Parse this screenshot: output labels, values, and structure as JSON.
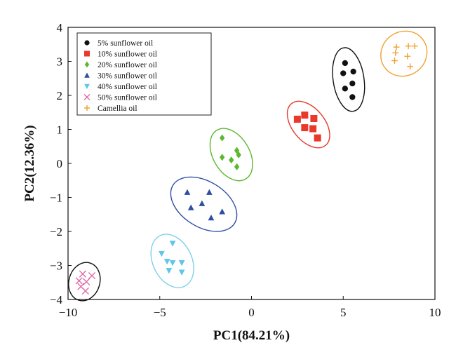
{
  "chart_data": {
    "type": "scatter",
    "title": "",
    "xlabel": "PC1(84.21%)",
    "ylabel": "PC2(12.36%)",
    "xlim": [
      -10,
      10
    ],
    "ylim": [
      -4,
      4
    ],
    "xticks": [
      "−10",
      "−5",
      "0",
      "5",
      "10"
    ],
    "yticks": [
      "4",
      "3",
      "2",
      "1",
      "0",
      "−1",
      "−2",
      "−3",
      "−4"
    ],
    "grid": false,
    "legend_position": "top-left",
    "series": [
      {
        "name": "5% sunflower oil",
        "marker": "circle",
        "color": "#111111",
        "ellipse_color": "#111111",
        "points": [
          [
            5.1,
            2.95
          ],
          [
            5.55,
            2.7
          ],
          [
            5.0,
            2.65
          ],
          [
            5.5,
            2.35
          ],
          [
            5.1,
            2.2
          ],
          [
            5.5,
            1.95
          ]
        ]
      },
      {
        "name": "10% sunflower oil",
        "marker": "square",
        "color": "#e8392b",
        "ellipse_color": "#e8392b",
        "points": [
          [
            2.9,
            1.42
          ],
          [
            2.5,
            1.3
          ],
          [
            3.4,
            1.32
          ],
          [
            2.9,
            1.05
          ],
          [
            3.35,
            1.02
          ],
          [
            3.6,
            0.75
          ]
        ]
      },
      {
        "name": "20% sunflower oil",
        "marker": "diamond",
        "color": "#5cb82e",
        "ellipse_color": "#5cb82e",
        "points": [
          [
            -1.6,
            0.75
          ],
          [
            -0.8,
            0.38
          ],
          [
            -0.7,
            0.25
          ],
          [
            -1.6,
            0.18
          ],
          [
            -1.1,
            0.1
          ],
          [
            -0.8,
            -0.1
          ]
        ]
      },
      {
        "name": "30% sunflower oil",
        "marker": "triangle-up",
        "color": "#2f4ea2",
        "ellipse_color": "#2f4ea2",
        "points": [
          [
            -3.5,
            -0.85
          ],
          [
            -2.3,
            -0.85
          ],
          [
            -2.7,
            -1.18
          ],
          [
            -3.3,
            -1.3
          ],
          [
            -1.6,
            -1.42
          ],
          [
            -2.2,
            -1.6
          ]
        ]
      },
      {
        "name": "40% sunflower oil",
        "marker": "triangle-down",
        "color": "#5ec6e6",
        "ellipse_color": "#7fd0ea",
        "points": [
          [
            -4.3,
            -2.35
          ],
          [
            -4.9,
            -2.65
          ],
          [
            -4.6,
            -2.88
          ],
          [
            -4.3,
            -2.92
          ],
          [
            -3.8,
            -2.92
          ],
          [
            -4.5,
            -3.15
          ],
          [
            -3.8,
            -3.2
          ]
        ]
      },
      {
        "name": "50% sunflower oil",
        "marker": "x",
        "color": "#e06aa8",
        "ellipse_color": "#111111",
        "points": [
          [
            -9.2,
            -3.25
          ],
          [
            -8.7,
            -3.3
          ],
          [
            -9.4,
            -3.45
          ],
          [
            -9.0,
            -3.48
          ],
          [
            -9.3,
            -3.62
          ],
          [
            -9.05,
            -3.75
          ]
        ]
      },
      {
        "name": "Camellia oil",
        "marker": "plus",
        "color": "#f0a030",
        "ellipse_color": "#f0a030",
        "points": [
          [
            7.9,
            3.42
          ],
          [
            8.55,
            3.45
          ],
          [
            8.9,
            3.45
          ],
          [
            7.85,
            3.25
          ],
          [
            8.5,
            3.15
          ],
          [
            7.8,
            3.02
          ],
          [
            8.65,
            2.85
          ]
        ]
      }
    ]
  }
}
